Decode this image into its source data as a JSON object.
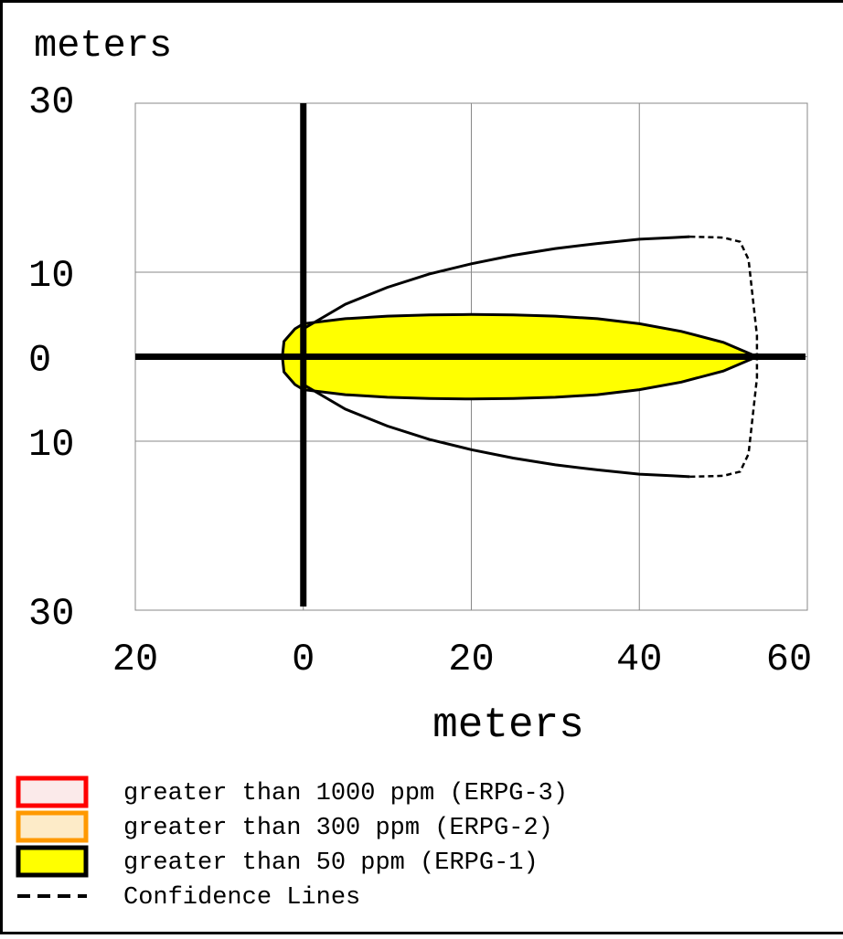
{
  "chart_data": {
    "type": "area",
    "title": "",
    "ylabel": "meters",
    "xlabel": "meters",
    "xlim": [
      -20,
      60
    ],
    "ylim": [
      -30,
      30
    ],
    "x_ticks": [
      -20,
      0,
      20,
      40,
      60
    ],
    "x_tick_labels": [
      "20",
      "0",
      "20",
      "40",
      "60"
    ],
    "y_ticks": [
      30,
      10,
      0,
      -10,
      -30
    ],
    "y_tick_labels": [
      "30",
      "10",
      "0",
      "10",
      "30"
    ],
    "grid": true,
    "legend_position": "bottom",
    "series": [
      {
        "name": "greater than 50 ppm (ERPG-1)",
        "fill": "#ffff00",
        "points": [
          [
            -2.5,
            0
          ],
          [
            -2.3,
            1.8
          ],
          [
            -1,
            3.3
          ],
          [
            0,
            3.9
          ],
          [
            5,
            4.5
          ],
          [
            10,
            4.8
          ],
          [
            15,
            4.95
          ],
          [
            20,
            5.0
          ],
          [
            25,
            4.95
          ],
          [
            30,
            4.8
          ],
          [
            35,
            4.5
          ],
          [
            40,
            3.9
          ],
          [
            45,
            3.0
          ],
          [
            50,
            1.7
          ],
          [
            54,
            0
          ],
          [
            50,
            -1.7
          ],
          [
            45,
            -3.0
          ],
          [
            40,
            -3.9
          ],
          [
            35,
            -4.5
          ],
          [
            30,
            -4.8
          ],
          [
            25,
            -4.95
          ],
          [
            20,
            -5.0
          ],
          [
            15,
            -4.95
          ],
          [
            10,
            -4.8
          ],
          [
            5,
            -4.5
          ],
          [
            0,
            -3.9
          ],
          [
            -1,
            -3.3
          ],
          [
            -2.3,
            -1.8
          ]
        ]
      },
      {
        "name": "Confidence Lines",
        "style": "solid-dashed",
        "upper": [
          [
            0,
            3.3
          ],
          [
            5,
            6.2
          ],
          [
            10,
            8.2
          ],
          [
            15,
            9.8
          ],
          [
            20,
            11.0
          ],
          [
            25,
            12.0
          ],
          [
            30,
            12.8
          ],
          [
            35,
            13.4
          ],
          [
            40,
            13.9
          ],
          [
            44,
            14.1
          ],
          [
            46,
            14.2
          ]
        ],
        "upper_dashed": [
          [
            46,
            14.2
          ],
          [
            50,
            14.1
          ],
          [
            52,
            13.6
          ],
          [
            53,
            11.5
          ],
          [
            53.5,
            7.0
          ],
          [
            54,
            2.5
          ],
          [
            54,
            0
          ]
        ],
        "lower": [
          [
            0,
            -3.3
          ],
          [
            5,
            -6.2
          ],
          [
            10,
            -8.2
          ],
          [
            15,
            -9.8
          ],
          [
            20,
            -11.0
          ],
          [
            25,
            -12.0
          ],
          [
            30,
            -12.8
          ],
          [
            35,
            -13.4
          ],
          [
            40,
            -13.9
          ],
          [
            44,
            -14.1
          ],
          [
            46,
            -14.2
          ]
        ],
        "lower_dashed": [
          [
            46,
            -14.2
          ],
          [
            50,
            -14.1
          ],
          [
            52,
            -13.6
          ],
          [
            53,
            -11.5
          ],
          [
            53.5,
            -7.0
          ],
          [
            54,
            -2.5
          ],
          [
            54,
            0
          ]
        ]
      }
    ],
    "legend": [
      {
        "label": "greater than 1000 ppm (ERPG-3)",
        "stroke": "#ff0000",
        "fill": "#fbeaea",
        "kind": "box"
      },
      {
        "label": "greater than 300 ppm (ERPG-2)",
        "stroke": "#ff9900",
        "fill": "#fdebc8",
        "kind": "box"
      },
      {
        "label": "greater than 50 ppm (ERPG-1)",
        "stroke": "#000000",
        "fill": "#ffff00",
        "kind": "box"
      },
      {
        "label": "Confidence Lines",
        "stroke": "#000000",
        "kind": "dash"
      }
    ]
  }
}
